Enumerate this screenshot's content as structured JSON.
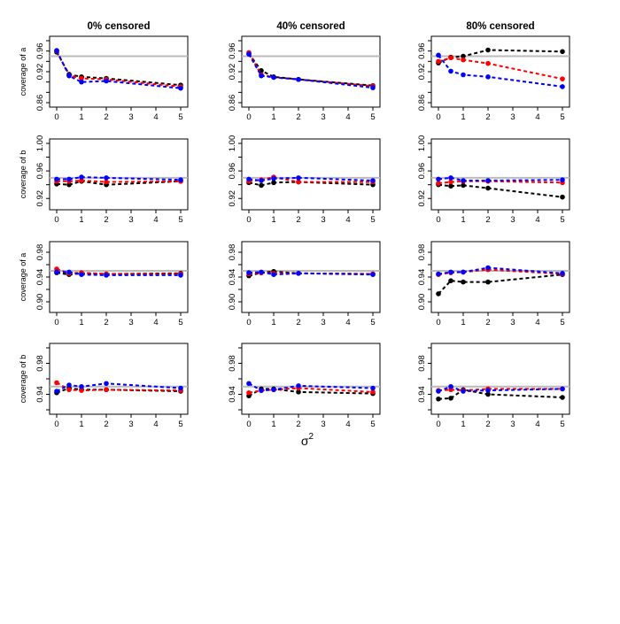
{
  "figure": {
    "column_titles": [
      "0% censored",
      "40% censored",
      "80% censored"
    ],
    "xlabel_main": "σ",
    "xlabel_sup": "2",
    "reference_line_color": "#bbbbbb"
  },
  "chart_data": [
    {
      "type": "line",
      "id": "r1c1",
      "row": 1,
      "col": 1,
      "title": "0% censored",
      "ylabel": "coverage of a",
      "x": [
        0,
        0.5,
        1,
        2,
        5
      ],
      "xlim": [
        0,
        5
      ],
      "ylim": [
        0.86,
        0.98
      ],
      "yticks": [
        "0.86",
        "0.92",
        "0.96"
      ],
      "ytick_values": [
        0.86,
        0.92,
        0.96
      ],
      "yticks_minor": [
        0.88,
        0.9,
        0.94,
        0.98
      ],
      "xticks": [
        "0",
        "1",
        "2",
        "3",
        "4",
        "5"
      ],
      "reference": 0.95,
      "series": [
        {
          "name": "black",
          "color": "#000000",
          "values": [
            0.958,
            0.915,
            0.91,
            0.907,
            0.894
          ]
        },
        {
          "name": "red",
          "color": "#ff0000",
          "values": [
            0.96,
            0.913,
            0.907,
            0.905,
            0.891
          ]
        },
        {
          "name": "blue",
          "color": "#0000ff",
          "values": [
            0.961,
            0.912,
            0.9,
            0.902,
            0.888
          ]
        }
      ]
    },
    {
      "type": "line",
      "id": "r1c2",
      "row": 1,
      "col": 2,
      "title": "40% censored",
      "ylabel": "",
      "x": [
        0,
        0.5,
        1,
        2,
        5
      ],
      "xlim": [
        0,
        5
      ],
      "ylim": [
        0.86,
        0.98
      ],
      "yticks": [
        "0.86",
        "0.92",
        "0.96"
      ],
      "ytick_values": [
        0.86,
        0.92,
        0.96
      ],
      "yticks_minor": [
        0.88,
        0.9,
        0.94,
        0.98
      ],
      "xticks": [
        "0",
        "1",
        "2",
        "3",
        "4",
        "5"
      ],
      "reference": 0.95,
      "series": [
        {
          "name": "black",
          "color": "#000000",
          "values": [
            0.955,
            0.922,
            0.91,
            0.905,
            0.893
          ]
        },
        {
          "name": "red",
          "color": "#ff0000",
          "values": [
            0.957,
            0.914,
            0.909,
            0.905,
            0.892
          ]
        },
        {
          "name": "blue",
          "color": "#0000ff",
          "values": [
            0.954,
            0.912,
            0.909,
            0.905,
            0.889
          ]
        }
      ]
    },
    {
      "type": "line",
      "id": "r1c3",
      "row": 1,
      "col": 3,
      "title": "80% censored",
      "ylabel": "",
      "x": [
        0,
        0.5,
        1,
        2,
        5
      ],
      "xlim": [
        0,
        5
      ],
      "ylim": [
        0.86,
        0.98
      ],
      "yticks": [
        "0.86",
        "0.92",
        "0.96"
      ],
      "ytick_values": [
        0.86,
        0.92,
        0.96
      ],
      "yticks_minor": [
        0.88,
        0.9,
        0.94,
        0.98
      ],
      "xticks": [
        "0",
        "1",
        "2",
        "3",
        "4",
        "5"
      ],
      "reference": 0.95,
      "series": [
        {
          "name": "black",
          "color": "#000000",
          "values": [
            0.937,
            0.948,
            0.95,
            0.962,
            0.959
          ]
        },
        {
          "name": "red",
          "color": "#ff0000",
          "values": [
            0.94,
            0.947,
            0.943,
            0.936,
            0.906
          ]
        },
        {
          "name": "blue",
          "color": "#0000ff",
          "values": [
            0.952,
            0.921,
            0.914,
            0.91,
            0.891
          ]
        }
      ]
    },
    {
      "type": "line",
      "id": "r2c1",
      "row": 2,
      "col": 1,
      "title": "",
      "ylabel": "coverage of b",
      "x": [
        0,
        0.5,
        1,
        2,
        5
      ],
      "xlim": [
        0,
        5
      ],
      "ylim": [
        0.91,
        1.0
      ],
      "yticks": [
        "0.92",
        "0.96",
        "1.00"
      ],
      "ytick_values": [
        0.92,
        0.96,
        1.0
      ],
      "yticks_minor": [
        0.94,
        0.98
      ],
      "xticks": [
        "0",
        "1",
        "2",
        "3",
        "4",
        "5"
      ],
      "reference": 0.95,
      "series": [
        {
          "name": "black",
          "color": "#000000",
          "values": [
            0.941,
            0.94,
            0.945,
            0.94,
            0.945
          ]
        },
        {
          "name": "red",
          "color": "#ff0000",
          "values": [
            0.945,
            0.945,
            0.946,
            0.944,
            0.945
          ]
        },
        {
          "name": "blue",
          "color": "#0000ff",
          "values": [
            0.948,
            0.948,
            0.951,
            0.95,
            0.947
          ]
        }
      ]
    },
    {
      "type": "line",
      "id": "r2c2",
      "row": 2,
      "col": 2,
      "title": "",
      "ylabel": "",
      "x": [
        0,
        0.5,
        1,
        2,
        5
      ],
      "xlim": [
        0,
        5
      ],
      "ylim": [
        0.91,
        1.0
      ],
      "yticks": [
        "0.92",
        "0.96",
        "1.00"
      ],
      "ytick_values": [
        0.92,
        0.96,
        1.0
      ],
      "yticks_minor": [
        0.94,
        0.98
      ],
      "xticks": [
        "0",
        "1",
        "2",
        "3",
        "4",
        "5"
      ],
      "reference": 0.95,
      "series": [
        {
          "name": "black",
          "color": "#000000",
          "values": [
            0.943,
            0.939,
            0.943,
            0.944,
            0.94
          ]
        },
        {
          "name": "red",
          "color": "#ff0000",
          "values": [
            0.945,
            0.947,
            0.951,
            0.944,
            0.944
          ]
        },
        {
          "name": "blue",
          "color": "#0000ff",
          "values": [
            0.948,
            0.946,
            0.949,
            0.95,
            0.946
          ]
        }
      ]
    },
    {
      "type": "line",
      "id": "r2c3",
      "row": 2,
      "col": 3,
      "title": "",
      "ylabel": "",
      "x": [
        0,
        0.5,
        1,
        2,
        5
      ],
      "xlim": [
        0,
        5
      ],
      "ylim": [
        0.91,
        1.0
      ],
      "yticks": [
        "0.92",
        "0.96",
        "1.00"
      ],
      "ytick_values": [
        0.92,
        0.96,
        1.0
      ],
      "yticks_minor": [
        0.94,
        0.98
      ],
      "xticks": [
        "0",
        "1",
        "2",
        "3",
        "4",
        "5"
      ],
      "reference": 0.95,
      "series": [
        {
          "name": "black",
          "color": "#000000",
          "values": [
            0.94,
            0.938,
            0.939,
            0.935,
            0.922
          ]
        },
        {
          "name": "red",
          "color": "#ff0000",
          "values": [
            0.942,
            0.944,
            0.945,
            0.945,
            0.943
          ]
        },
        {
          "name": "blue",
          "color": "#0000ff",
          "values": [
            0.948,
            0.95,
            0.946,
            0.946,
            0.947
          ]
        }
      ]
    },
    {
      "type": "line",
      "id": "r3c1",
      "row": 3,
      "col": 1,
      "title": "",
      "ylabel": "coverage of a",
      "x": [
        0,
        0.5,
        1,
        2,
        5
      ],
      "xlim": [
        0,
        5
      ],
      "ylim": [
        0.89,
        0.99
      ],
      "yticks": [
        "0.90",
        "0.94",
        "0.98"
      ],
      "ytick_values": [
        0.9,
        0.94,
        0.98
      ],
      "yticks_minor": [
        0.92,
        0.96
      ],
      "xticks": [
        "0",
        "1",
        "2",
        "3",
        "4",
        "5"
      ],
      "reference": 0.95,
      "series": [
        {
          "name": "black",
          "color": "#000000",
          "values": [
            0.947,
            0.944,
            0.946,
            0.945,
            0.946
          ]
        },
        {
          "name": "red",
          "color": "#ff0000",
          "values": [
            0.953,
            0.946,
            0.947,
            0.945,
            0.945
          ]
        },
        {
          "name": "blue",
          "color": "#0000ff",
          "values": [
            0.948,
            0.948,
            0.944,
            0.943,
            0.943
          ]
        }
      ]
    },
    {
      "type": "line",
      "id": "r3c2",
      "row": 3,
      "col": 2,
      "title": "",
      "ylabel": "",
      "x": [
        0,
        0.5,
        1,
        2,
        5
      ],
      "xlim": [
        0,
        5
      ],
      "ylim": [
        0.89,
        0.99
      ],
      "yticks": [
        "0.90",
        "0.94",
        "0.98"
      ],
      "ytick_values": [
        0.9,
        0.94,
        0.98
      ],
      "yticks_minor": [
        0.92,
        0.96
      ],
      "xticks": [
        "0",
        "1",
        "2",
        "3",
        "4",
        "5"
      ],
      "reference": 0.95,
      "series": [
        {
          "name": "black",
          "color": "#000000",
          "values": [
            0.942,
            0.947,
            0.949,
            0.946,
            0.945
          ]
        },
        {
          "name": "red",
          "color": "#ff0000",
          "values": [
            0.945,
            0.947,
            0.946,
            0.946,
            0.945
          ]
        },
        {
          "name": "blue",
          "color": "#0000ff",
          "values": [
            0.947,
            0.948,
            0.944,
            0.946,
            0.944
          ]
        }
      ]
    },
    {
      "type": "line",
      "id": "r3c3",
      "row": 3,
      "col": 3,
      "title": "",
      "ylabel": "",
      "x": [
        0,
        0.5,
        1,
        2,
        5
      ],
      "xlim": [
        0,
        5
      ],
      "ylim": [
        0.89,
        0.99
      ],
      "yticks": [
        "0.90",
        "0.94",
        "0.98"
      ],
      "ytick_values": [
        0.9,
        0.94,
        0.98
      ],
      "yticks_minor": [
        0.92,
        0.96
      ],
      "xticks": [
        "0",
        "1",
        "2",
        "3",
        "4",
        "5"
      ],
      "reference": 0.95,
      "series": [
        {
          "name": "black",
          "color": "#000000",
          "values": [
            0.913,
            0.934,
            0.932,
            0.932,
            0.944
          ]
        },
        {
          "name": "red",
          "color": "#ff0000",
          "values": [
            0.944,
            0.947,
            0.948,
            0.952,
            0.945
          ]
        },
        {
          "name": "blue",
          "color": "#0000ff",
          "values": [
            0.945,
            0.948,
            0.948,
            0.955,
            0.946
          ]
        }
      ]
    },
    {
      "type": "line",
      "id": "r4c1",
      "row": 4,
      "col": 1,
      "title": "",
      "ylabel": "coverage of b",
      "x": [
        0,
        0.5,
        1,
        2,
        5
      ],
      "xlim": [
        0,
        5
      ],
      "ylim": [
        0.92,
        1.0
      ],
      "yticks": [
        "0.94",
        "0.98"
      ],
      "ytick_values": [
        0.94,
        0.98
      ],
      "yticks_minor": [
        0.92,
        0.96,
        1.0
      ],
      "xticks": [
        "0",
        "1",
        "2",
        "3",
        "4",
        "5"
      ],
      "reference": 0.95,
      "series": [
        {
          "name": "black",
          "color": "#000000",
          "values": [
            0.942,
            0.948,
            0.946,
            0.946,
            0.944
          ]
        },
        {
          "name": "red",
          "color": "#ff0000",
          "values": [
            0.955,
            0.946,
            0.945,
            0.946,
            0.945
          ]
        },
        {
          "name": "blue",
          "color": "#0000ff",
          "values": [
            0.944,
            0.952,
            0.95,
            0.954,
            0.948
          ]
        }
      ]
    },
    {
      "type": "line",
      "id": "r4c2",
      "row": 4,
      "col": 2,
      "title": "",
      "ylabel": "",
      "x": [
        0,
        0.5,
        1,
        2,
        5
      ],
      "xlim": [
        0,
        5
      ],
      "ylim": [
        0.92,
        1.0
      ],
      "yticks": [
        "0.94",
        "0.98"
      ],
      "ytick_values": [
        0.94,
        0.98
      ],
      "yticks_minor": [
        0.92,
        0.96,
        1.0
      ],
      "xticks": [
        "0",
        "1",
        "2",
        "3",
        "4",
        "5"
      ],
      "reference": 0.95,
      "series": [
        {
          "name": "black",
          "color": "#000000",
          "values": [
            0.938,
            0.947,
            0.947,
            0.943,
            0.941
          ]
        },
        {
          "name": "red",
          "color": "#ff0000",
          "values": [
            0.942,
            0.945,
            0.946,
            0.948,
            0.943
          ]
        },
        {
          "name": "blue",
          "color": "#0000ff",
          "values": [
            0.954,
            0.945,
            0.946,
            0.951,
            0.948
          ]
        }
      ]
    },
    {
      "type": "line",
      "id": "r4c3",
      "row": 4,
      "col": 3,
      "title": "",
      "ylabel": "",
      "x": [
        0,
        0.5,
        1,
        2,
        5
      ],
      "xlim": [
        0,
        5
      ],
      "ylim": [
        0.92,
        1.0
      ],
      "yticks": [
        "0.94",
        "0.98"
      ],
      "ytick_values": [
        0.94,
        0.98
      ],
      "yticks_minor": [
        0.92,
        0.96,
        1.0
      ],
      "xticks": [
        "0",
        "1",
        "2",
        "3",
        "4",
        "5"
      ],
      "reference": 0.95,
      "series": [
        {
          "name": "black",
          "color": "#000000",
          "values": [
            0.934,
            0.935,
            0.946,
            0.94,
            0.936
          ]
        },
        {
          "name": "red",
          "color": "#ff0000",
          "values": [
            0.945,
            0.946,
            0.945,
            0.947,
            0.947
          ]
        },
        {
          "name": "blue",
          "color": "#0000ff",
          "values": [
            0.944,
            0.95,
            0.944,
            0.945,
            0.947
          ]
        }
      ]
    }
  ]
}
